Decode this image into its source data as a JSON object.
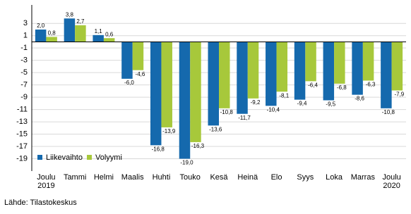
{
  "chart_data": {
    "type": "bar",
    "categories": [
      "Joulu\n2019",
      "Tammi",
      "Helmi",
      "Maalis",
      "Huhti",
      "Touko",
      "Kesä",
      "Heinä",
      "Elo",
      "Syys",
      "Loka",
      "Marras",
      "Joulu\n2020"
    ],
    "series": [
      {
        "name": "Liikevaihto",
        "color": "#1569ad",
        "values": [
          2.0,
          3.8,
          1.1,
          -6.0,
          -16.8,
          -19.0,
          -13.6,
          -11.7,
          -10.4,
          -9.4,
          -9.5,
          -8.6,
          -10.8
        ],
        "value_labels": [
          "2,0",
          "3,8",
          "1,1",
          "-6,0",
          "-16,8",
          "-19,0",
          "-13,6",
          "-11,7",
          "-10,4",
          "-9,4",
          "-9,5",
          "-8,6",
          "-10,8"
        ]
      },
      {
        "name": "Volyymi",
        "color": "#a7c83b",
        "values": [
          0.8,
          2.7,
          0.6,
          -4.6,
          -13.9,
          -16.3,
          -10.8,
          -9.2,
          -8.1,
          -6.4,
          -6.8,
          -6.3,
          -7.9
        ],
        "value_labels": [
          "0,8",
          "2,7",
          "0,6",
          "-4,6",
          "-13,9",
          "-16,3",
          "-10,8",
          "-9,2",
          "-8,1",
          "-6,4",
          "-6,8",
          "-6,3",
          "-7,9"
        ]
      }
    ],
    "ylim": [
      -21,
      6
    ],
    "yticks": [
      3,
      1,
      -1,
      -3,
      -5,
      -7,
      -9,
      -11,
      -13,
      -15,
      -17,
      -19
    ],
    "grid": true,
    "legend": "lower-left"
  },
  "source": "Lähde: Tilastokeskus"
}
